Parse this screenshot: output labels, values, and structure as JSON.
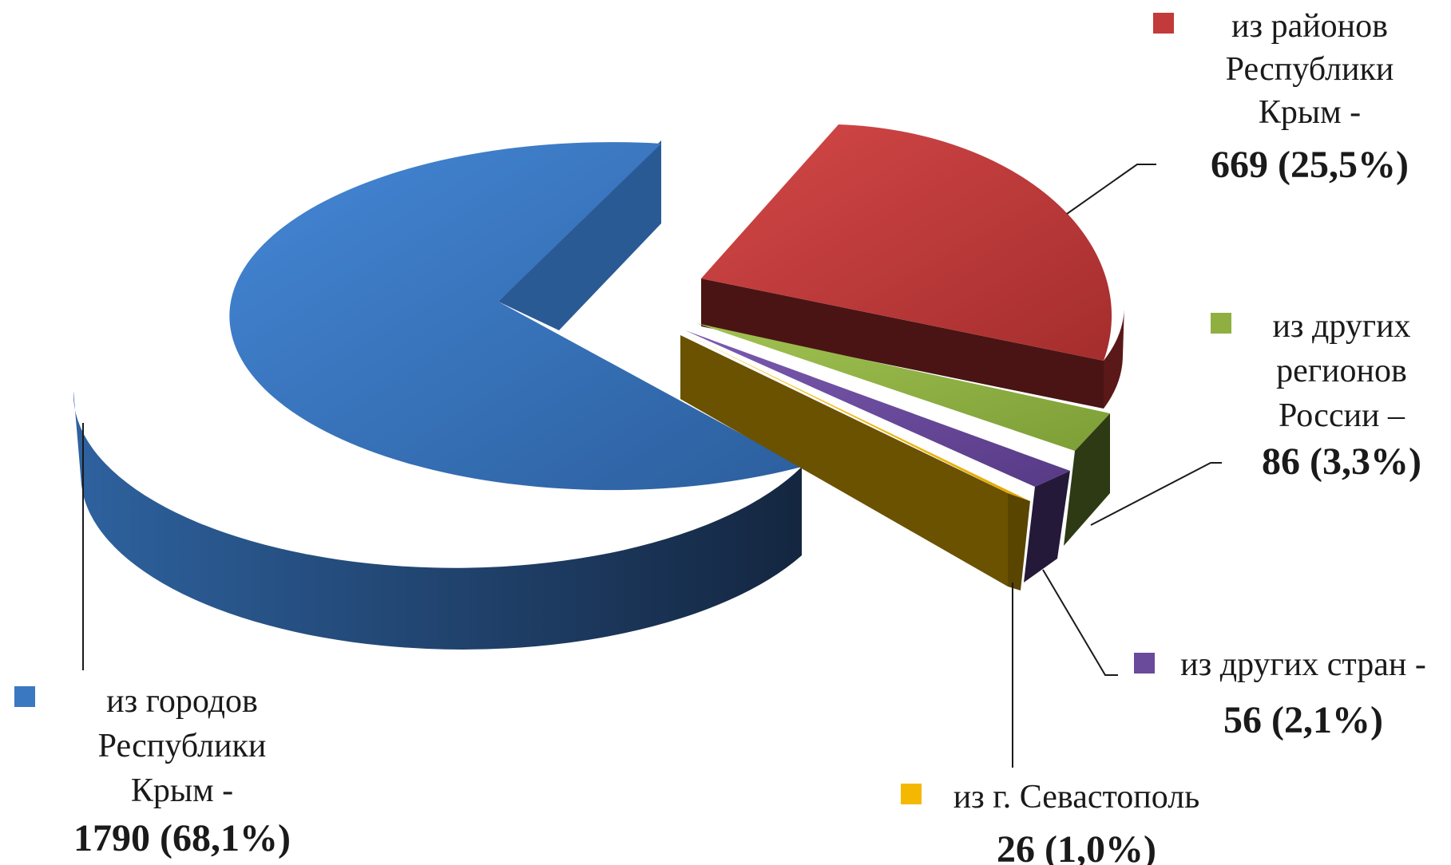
{
  "chart_data": {
    "type": "pie",
    "title": "",
    "slices": [
      {
        "label": [
          "из городов",
          "Республики",
          "Крым -"
        ],
        "value": 1790,
        "value_label": "1790 (68,1%)",
        "percent": 68.1,
        "color": "#3a78c2"
      },
      {
        "label": [
          "из районов",
          "Республики",
          "Крым -"
        ],
        "value": 669,
        "value_label": "669 (25,5%)",
        "percent": 25.5,
        "color": "#c23a3a"
      },
      {
        "label": [
          "из других",
          "регионов",
          "России –"
        ],
        "value": 86,
        "value_label": "86 (3,3%)",
        "percent": 3.3,
        "color": "#8fb041"
      },
      {
        "label": [
          "из других стран -"
        ],
        "value": 56,
        "value_label": "56 (2,1%)",
        "percent": 2.1,
        "color": "#6a4a9a"
      },
      {
        "label": [
          "из г. Севастополь"
        ],
        "value": 26,
        "value_label": "26 (1,0%)",
        "percent": 1.0,
        "color": "#f5b800"
      }
    ]
  }
}
